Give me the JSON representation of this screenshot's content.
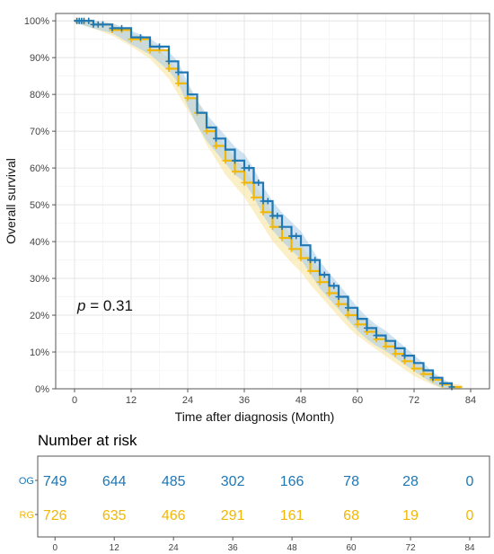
{
  "chart_data": {
    "type": "line",
    "subtype": "kaplan-meier",
    "title": "",
    "xlabel": "Time after diagnosis (Month)",
    "ylabel": "Overall survival",
    "xlim": [
      -4,
      88
    ],
    "ylim": [
      0,
      1.02
    ],
    "x_ticks": [
      0,
      12,
      24,
      36,
      48,
      60,
      72,
      84
    ],
    "y_ticks": [
      0,
      0.1,
      0.2,
      0.3,
      0.4,
      0.5,
      0.6,
      0.7,
      0.8,
      0.9,
      1.0
    ],
    "y_tick_labels": [
      "0%",
      "10%",
      "20%",
      "30%",
      "40%",
      "50%",
      "60%",
      "70%",
      "80%",
      "90%",
      "100%"
    ],
    "x_tick_labels": [
      "0",
      "12",
      "24",
      "36",
      "48",
      "60",
      "72",
      "84"
    ],
    "grid": true,
    "confidence_bands": true,
    "annotation": {
      "prefix": "p",
      "text": "= 0.31"
    },
    "series": [
      {
        "name": "OG",
        "color": "#1f77b4",
        "band_color": "#a6cbe8",
        "x": [
          0,
          4,
          8,
          12,
          16,
          20,
          22,
          24,
          26,
          28,
          30,
          32,
          34,
          36,
          38,
          40,
          42,
          44,
          46,
          48,
          50,
          52,
          54,
          56,
          58,
          60,
          62,
          64,
          66,
          68,
          70,
          72,
          74,
          76,
          78,
          80
        ],
        "y": [
          1.0,
          0.99,
          0.98,
          0.955,
          0.93,
          0.89,
          0.86,
          0.8,
          0.75,
          0.71,
          0.68,
          0.65,
          0.62,
          0.6,
          0.56,
          0.51,
          0.47,
          0.44,
          0.415,
          0.39,
          0.35,
          0.31,
          0.28,
          0.25,
          0.22,
          0.19,
          0.165,
          0.145,
          0.13,
          0.11,
          0.09,
          0.07,
          0.05,
          0.03,
          0.015,
          0.005
        ],
        "censor_x": [
          0.5,
          1,
          1.5,
          2,
          3,
          4,
          5,
          6,
          8,
          10,
          14,
          18,
          20,
          22,
          30,
          34,
          36,
          37,
          39,
          40,
          41,
          42,
          43,
          44,
          46,
          47,
          50,
          51,
          53,
          55,
          56,
          58,
          62,
          64,
          70,
          76,
          78,
          80
        ]
      },
      {
        "name": "RG",
        "color": "#f2b705",
        "band_color": "#f7e199",
        "x": [
          0,
          4,
          8,
          12,
          16,
          20,
          22,
          24,
          26,
          28,
          30,
          32,
          34,
          36,
          38,
          40,
          42,
          44,
          46,
          48,
          50,
          52,
          54,
          56,
          58,
          60,
          62,
          64,
          66,
          68,
          70,
          72,
          74,
          76,
          78,
          80,
          82
        ],
        "y": [
          1.0,
          0.99,
          0.975,
          0.95,
          0.92,
          0.87,
          0.83,
          0.79,
          0.75,
          0.7,
          0.66,
          0.62,
          0.59,
          0.56,
          0.52,
          0.48,
          0.44,
          0.41,
          0.38,
          0.355,
          0.32,
          0.29,
          0.26,
          0.23,
          0.2,
          0.175,
          0.155,
          0.135,
          0.115,
          0.095,
          0.075,
          0.055,
          0.04,
          0.025,
          0.012,
          0.005,
          0.003
        ],
        "censor_x": [
          0.5,
          1,
          2,
          3,
          4,
          6,
          8,
          10,
          12,
          14,
          16,
          18,
          20,
          22,
          24,
          26,
          28,
          30,
          32,
          34,
          36,
          38,
          40,
          42,
          44,
          46,
          48,
          50,
          52,
          54,
          56,
          58,
          60,
          62,
          64,
          66,
          68,
          70,
          72,
          74,
          76,
          78,
          80
        ]
      }
    ],
    "risk_table": {
      "title": "Number at risk",
      "times": [
        "0",
        "12",
        "24",
        "36",
        "48",
        "60",
        "72",
        "84"
      ],
      "rows": [
        {
          "label": "OG",
          "color": "#1f77b4",
          "values": [
            "749",
            "644",
            "485",
            "302",
            "166",
            "78",
            "28",
            "0"
          ]
        },
        {
          "label": "RG",
          "color": "#f2b705",
          "values": [
            "726",
            "635",
            "466",
            "291",
            "161",
            "68",
            "19",
            "0"
          ]
        }
      ]
    }
  }
}
